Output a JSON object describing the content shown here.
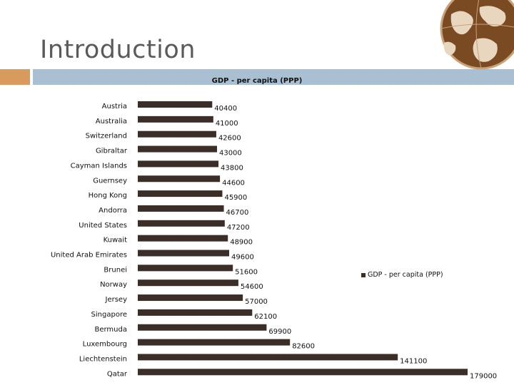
{
  "slide": {
    "title": "Introduction"
  },
  "colors": {
    "bar": "#3b2e28",
    "accent_orange": "#d99a5e",
    "accent_blue": "#a9bfd2"
  },
  "decoration": {
    "icon": "globe-icon"
  },
  "chart_data": {
    "type": "bar",
    "orientation": "horizontal",
    "title": "GDP - per capita (PPP)",
    "categories": [
      "Austria",
      "Australia",
      "Switzerland",
      "Gibraltar",
      "Cayman Islands",
      "Guernsey",
      "Hong Kong",
      "Andorra",
      "United States",
      "Kuwait",
      "United Arab Emirates",
      "Brunei",
      "Norway",
      "Jersey",
      "Singapore",
      "Bermuda",
      "Luxembourg",
      "Liechtenstein",
      "Qatar"
    ],
    "series": [
      {
        "name": "GDP - per capita (PPP)",
        "values": [
          40400,
          41000,
          42600,
          43000,
          43800,
          44600,
          45900,
          46700,
          47200,
          48900,
          49600,
          51600,
          54600,
          57000,
          62100,
          69900,
          82600,
          141100,
          179000
        ],
        "labels": [
          "40400",
          "41000",
          "42600",
          "43000",
          "43800",
          "44600",
          "45900",
          "46700",
          "47200",
          "48900",
          "49600",
          "51600",
          "54600",
          "57000",
          "62100",
          "69900",
          "82600",
          "141100",
          "179000"
        ]
      }
    ],
    "xlim": [
      0,
      179000
    ],
    "grid": false,
    "legend_position": "right"
  }
}
